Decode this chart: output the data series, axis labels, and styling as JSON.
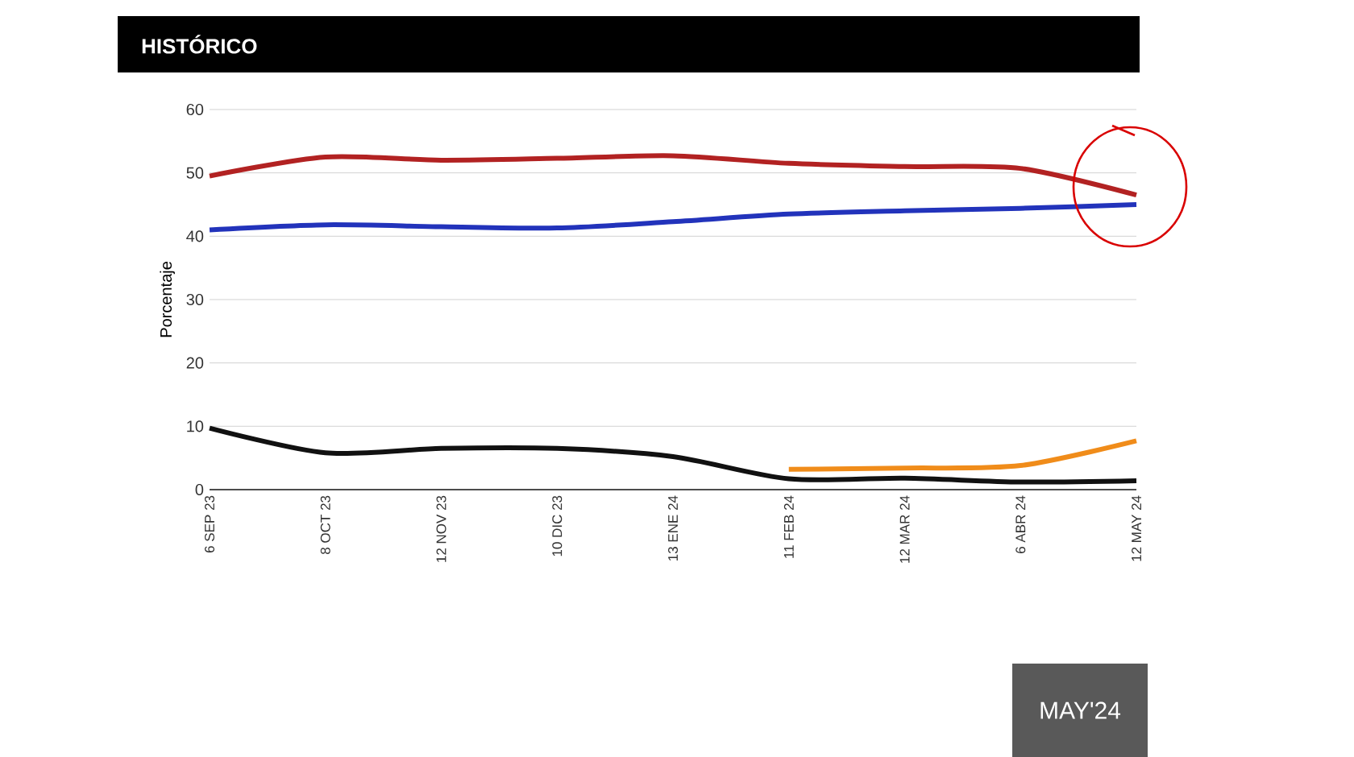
{
  "chart_data": {
    "type": "line",
    "title": "HISTÓRICO",
    "ylabel": "Porcentaje",
    "categories": [
      "6 SEP 23",
      "8 OCT 23",
      "12 NOV 23",
      "10 DIC 23",
      "13 ENE 24",
      "11 FEB 24",
      "12 MAR 24",
      "6 ABR 24",
      "12 MAY 24"
    ],
    "series": [
      {
        "color": "#b22222",
        "values": [
          49.5,
          52.5,
          52,
          52.3,
          52.7,
          51.5,
          51,
          50.7,
          46.5
        ]
      },
      {
        "color": "#2233bb",
        "values": [
          41,
          41.8,
          41.5,
          41.3,
          42.3,
          43.5,
          44,
          44.4,
          45
        ]
      },
      {
        "color": "#111111",
        "values": [
          9.7,
          5.8,
          6.5,
          6.5,
          5.2,
          1.7,
          1.8,
          1.2,
          1.4
        ]
      },
      {
        "color": "#f08c1a",
        "values": [
          null,
          null,
          null,
          null,
          null,
          3.2,
          3.4,
          3.8,
          7.7
        ]
      }
    ],
    "ylim": [
      0,
      60
    ],
    "yticks": [
      0,
      10,
      20,
      30,
      40,
      50,
      60
    ],
    "grid": "y",
    "marker": "none",
    "line_style": "solid",
    "annotations": [
      "MAY'24"
    ]
  }
}
